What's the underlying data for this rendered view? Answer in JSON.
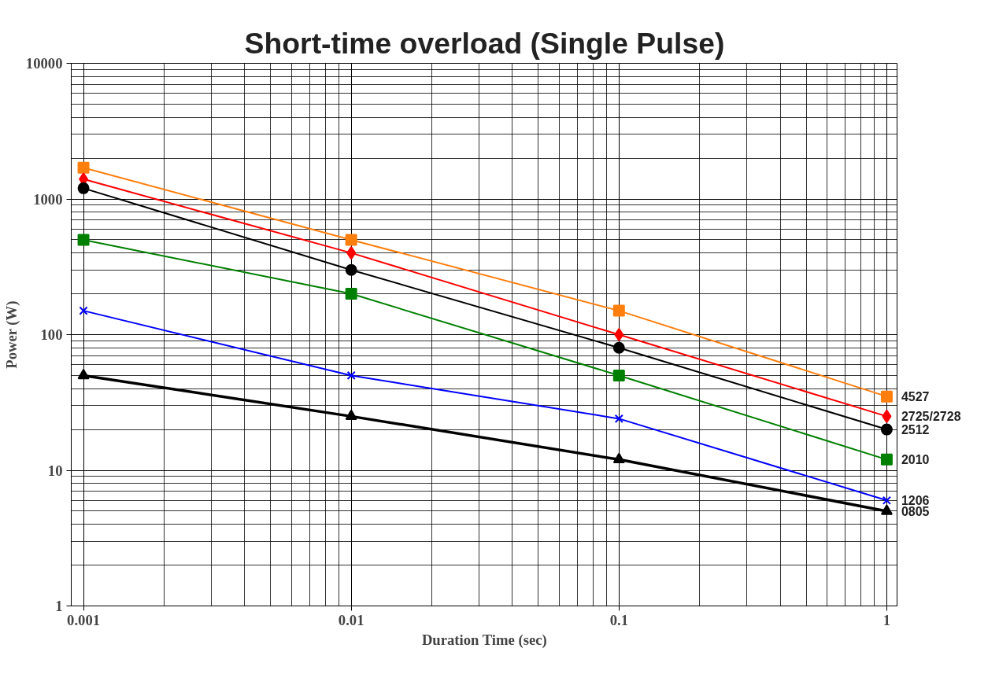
{
  "chart_data": {
    "type": "line",
    "title": "Short-time overload (Single Pulse)",
    "xlabel": "Duration Time (sec)",
    "ylabel": "Power (W)",
    "x": [
      0.001,
      0.01,
      0.1,
      1
    ],
    "log": "xy",
    "xlim": [
      0.0009,
      1.1
    ],
    "ylim": [
      1,
      10000
    ],
    "xticks": [
      0.001,
      0.01,
      0.1,
      1
    ],
    "yticks": [
      1,
      10,
      100,
      1000,
      10000
    ],
    "grid": true,
    "series": [
      {
        "name": "4527",
        "color": "#ff7f0e",
        "values": [
          1700,
          500,
          150,
          35
        ],
        "marker": "square"
      },
      {
        "name": "2725/2728",
        "color": "#ff0000",
        "values": [
          1400,
          400,
          100,
          25
        ],
        "marker": "diamond"
      },
      {
        "name": "2512",
        "color": "#000000",
        "values": [
          1200,
          300,
          80,
          20
        ],
        "marker": "circle"
      },
      {
        "name": "2010",
        "color": "#008000",
        "values": [
          500,
          200,
          50,
          12
        ],
        "marker": "square"
      },
      {
        "name": "1206",
        "color": "#0000ff",
        "values": [
          150,
          50,
          24,
          6
        ],
        "marker": "cross"
      },
      {
        "name": "0805",
        "color": "#000000",
        "values": [
          50,
          25,
          12,
          5
        ],
        "marker": "triangle"
      }
    ]
  }
}
